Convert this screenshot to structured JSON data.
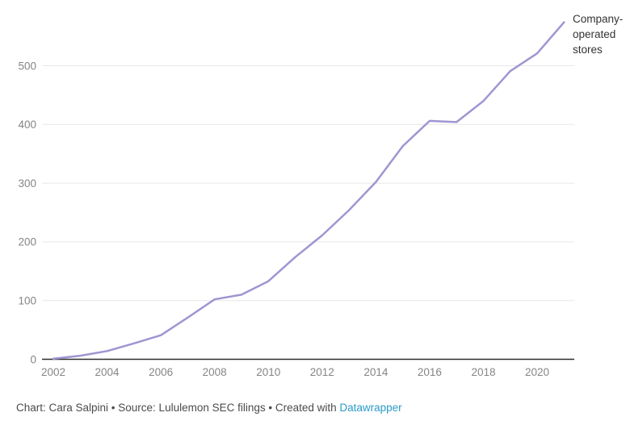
{
  "chart_data": {
    "type": "line",
    "title": "",
    "series_label": "Company-operated stores",
    "x": [
      2002,
      2003,
      2004,
      2005,
      2006,
      2007,
      2008,
      2009,
      2010,
      2011,
      2012,
      2013,
      2014,
      2015,
      2016,
      2017,
      2018,
      2019,
      2020,
      2021
    ],
    "values": [
      1,
      6,
      14,
      27,
      41,
      71,
      102,
      110,
      133,
      174,
      211,
      254,
      302,
      363,
      406,
      404,
      440,
      491,
      521,
      574
    ],
    "x_ticks": [
      2002,
      2004,
      2006,
      2008,
      2010,
      2012,
      2014,
      2016,
      2018,
      2020
    ],
    "y_ticks": [
      0,
      100,
      200,
      300,
      400,
      500
    ],
    "xlim": [
      2002,
      2021
    ],
    "ylim": [
      0,
      580
    ],
    "grid": "horizontal",
    "legend_position": "annotation-right-of-line-end",
    "line_color": "#9e96d2",
    "axis_color": "#2b2b2b",
    "grid_color": "#e7e7e7",
    "tick_label_color": "#858585"
  },
  "annotation": {
    "label": "Company-operated stores"
  },
  "footer": {
    "prefix": "Chart: Cara Salpini • Source: Lululemon SEC filings • Created with ",
    "link_label": "Datawrapper",
    "link_color": "#2b9bc7",
    "text_color": "#4b4b4b"
  }
}
